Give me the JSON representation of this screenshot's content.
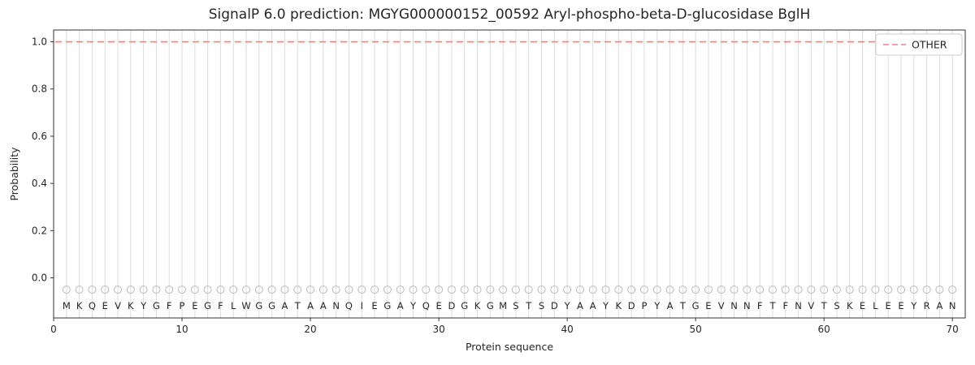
{
  "title": "SignalP 6.0 prediction: MGYG000000152_00592 Aryl-phospho-beta-D-glucosidase BglH",
  "chart_data": {
    "type": "line",
    "title": "SignalP 6.0 prediction: MGYG000000152_00592 Aryl-phospho-beta-D-glucosidase BglH",
    "xlabel": "Protein sequence",
    "ylabel": "Probability",
    "xlim": [
      0,
      71
    ],
    "ylim": [
      -0.17,
      1.05
    ],
    "xticks": [
      0,
      10,
      20,
      30,
      40,
      50,
      60,
      70
    ],
    "yticks": [
      "0.0",
      "0.2",
      "0.4",
      "0.6",
      "0.8",
      "1.0"
    ],
    "grid": "vertical-line-per-residue",
    "sequence": "MKQEVKYGFPEGFLWGGATAANQIEGAYQEDGKGMSTSDYAAYKDPYATGEVNNFTFNVTSKELEEYRAN",
    "sequence_length": 70,
    "residue_marker": {
      "shape": "open-circle",
      "y": -0.05
    },
    "residue_letter_y": -0.118,
    "series": [
      {
        "name": "OTHER",
        "style": "dashed",
        "y_constant": 1.0
      }
    ],
    "legend": {
      "position": "upper-right",
      "entries": [
        {
          "label": "OTHER",
          "dashed": true
        }
      ]
    },
    "colors": {
      "other_line": "#f47f7f",
      "grid": "#dcdcdc",
      "marker": "#bbbbbb",
      "text": "#262626",
      "spine": "#333333",
      "legend_border": "#cccccc",
      "background": "#ffffff"
    }
  }
}
